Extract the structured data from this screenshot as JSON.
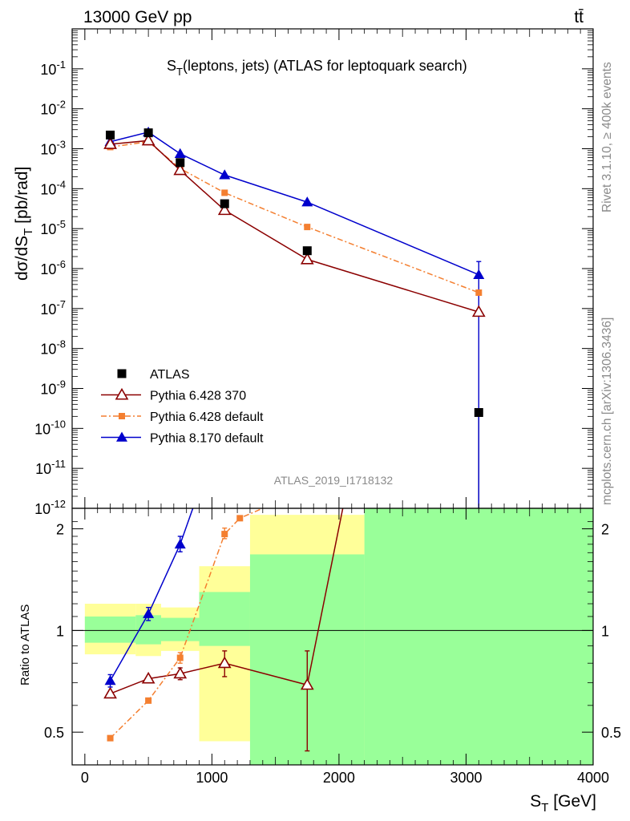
{
  "header": {
    "energy_label": "13000 GeV pp",
    "process_label": "tt̄"
  },
  "side_labels": {
    "rivet": "Rivet 3.1.10, ≥ 400k events",
    "mcplots": "mcplots.cern.ch [arXiv:1306.3436]"
  },
  "chart_data": [
    {
      "type": "line",
      "title": "S_T(leptons, jets) (ATLAS for leptoquark search)",
      "watermark": "ATLAS_2019_I1718132",
      "ylabel": "dσ/dS_T [pb/rad]",
      "yscale": "log",
      "ylim": [
        1e-12,
        1
      ],
      "xlim": [
        -100,
        4000
      ],
      "y_tick_labels": [
        "10^-12",
        "10^-11",
        "10^-10",
        "10^-9",
        "10^-8",
        "10^-7",
        "10^-6",
        "10^-5",
        "10^-4",
        "10^-3",
        "10^-2",
        "10^-1"
      ],
      "legend_position": "lower-left",
      "colors": {
        "ATLAS": "#000000",
        "Pythia 6.428 370": "#8b0000",
        "Pythia 6.428 default": "#f47f30",
        "Pythia 8.170 default": "#0000cc"
      },
      "series": [
        {
          "name": "ATLAS",
          "style": "square-markers",
          "x": [
            200,
            500,
            750,
            1100,
            1750,
            3100
          ],
          "y": [
            0.0022,
            0.0025,
            0.00045,
            4.2e-05,
            2.8e-06,
            2.5e-10
          ]
        },
        {
          "name": "Pythia 6.428 370",
          "style": "open-triangle-solid",
          "x": [
            200,
            500,
            750,
            1100,
            1750,
            3100
          ],
          "y": [
            0.0013,
            0.0016,
            0.00029,
            2.9e-05,
            1.7e-06,
            8.2e-08
          ],
          "yerr": [
            0,
            0,
            0,
            0,
            0,
            0
          ]
        },
        {
          "name": "Pythia 6.428 default",
          "style": "small-square-dashdot",
          "x": [
            200,
            500,
            750,
            1100,
            1750,
            3100
          ],
          "y": [
            0.0011,
            0.0015,
            0.00032,
            7.9e-05,
            1.1e-05,
            2.5e-07
          ]
        },
        {
          "name": "Pythia 8.170 default",
          "style": "filled-triangle-solid",
          "x": [
            200,
            500,
            750,
            1100,
            1750,
            3100
          ],
          "y": [
            0.0015,
            0.0026,
            0.00075,
            0.00022,
            4.6e-05,
            7e-07
          ],
          "yerr_low": [
            0,
            0,
            0,
            0,
            0,
            7e-07
          ],
          "yerr_high": [
            0,
            0,
            0,
            0,
            0,
            8e-07
          ]
        }
      ]
    },
    {
      "type": "line",
      "ylabel": "Ratio to ATLAS",
      "xlabel": "S_T [GeV]",
      "ylim": [
        0.4,
        2.3
      ],
      "xlim": [
        -100,
        4000
      ],
      "x_ticks": [
        0,
        1000,
        2000,
        3000,
        4000
      ],
      "y_ticks": [
        0.5,
        1,
        2
      ],
      "reference_line": 1,
      "bands": [
        {
          "x_low": 0,
          "x_high": 400,
          "stat_low": 0.92,
          "stat_high": 1.1,
          "total_low": 0.85,
          "total_high": 1.2
        },
        {
          "x_low": 400,
          "x_high": 600,
          "stat_low": 0.91,
          "stat_high": 1.11,
          "total_low": 0.84,
          "total_high": 1.2
        },
        {
          "x_low": 600,
          "x_high": 900,
          "stat_low": 0.93,
          "stat_high": 1.09,
          "total_low": 0.87,
          "total_high": 1.17
        },
        {
          "x_low": 900,
          "x_high": 1300,
          "stat_low": 0.9,
          "stat_high": 1.3,
          "total_low": 0.47,
          "total_high": 1.55
        },
        {
          "x_low": 1300,
          "x_high": 2200,
          "stat_low": 0.4,
          "stat_high": 1.68,
          "total_low": 0.4,
          "total_high": 2.2
        },
        {
          "x_low": 2200,
          "x_high": 4000,
          "stat_low": 0.4,
          "stat_high": 2.3,
          "total_low": 0.4,
          "total_high": 2.3
        }
      ],
      "band_colors": {
        "stat": "#99ff99",
        "total": "#ffff99"
      },
      "series": [
        {
          "name": "Pythia 6.428 370",
          "x": [
            200,
            500,
            750,
            1100,
            1750,
            2030
          ],
          "y": [
            0.65,
            0.72,
            0.745,
            0.8,
            0.69,
            2.3
          ],
          "yerr_low": [
            0,
            0,
            0.03,
            0.07,
            0.25,
            0
          ],
          "yerr_high": [
            0,
            0,
            0.03,
            0.07,
            0.18,
            0
          ]
        },
        {
          "name": "Pythia 6.428 default",
          "x": [
            200,
            500,
            750,
            1100,
            1220,
            1400
          ],
          "y": [
            0.48,
            0.62,
            0.83,
            1.93,
            2.15,
            2.3
          ],
          "yerr_low": [
            0,
            0,
            0.03,
            0.06,
            0,
            0
          ],
          "yerr_high": [
            0,
            0,
            0.03,
            0.08,
            0,
            0
          ]
        },
        {
          "name": "Pythia 8.170 default",
          "x": [
            200,
            500,
            750,
            850
          ],
          "y": [
            0.71,
            1.12,
            1.8,
            2.3
          ],
          "yerr_low": [
            0.03,
            0.05,
            0.09,
            0
          ],
          "yerr_high": [
            0.03,
            0.05,
            0.1,
            0
          ]
        }
      ]
    }
  ]
}
